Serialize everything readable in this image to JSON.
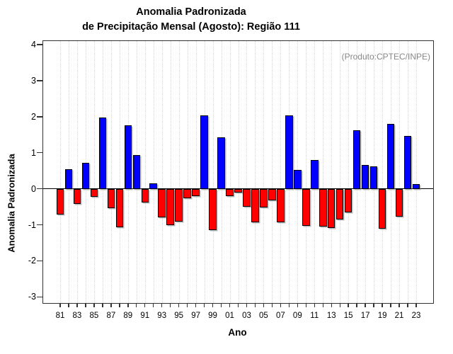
{
  "title": {
    "line1": "Anomalia Padronizada",
    "line2": "de Precipitação Mensal (Agosto): Região 111"
  },
  "annotation": "(Produto:CPTEC/INPE)",
  "chart_data": {
    "type": "bar",
    "title": "Anomalia Padronizada de Precipitação Mensal (Agosto): Região 111",
    "xlabel": "Ano",
    "ylabel": "Anomalia Padronizada",
    "ylim": [
      -3.17,
      4.1
    ],
    "yticks": [
      4,
      3,
      2,
      1,
      0,
      -1,
      -2,
      -3
    ],
    "grid": "vertical-dotted",
    "legend": "none",
    "x_labels_every": 2,
    "categories": [
      "81",
      "82",
      "83",
      "84",
      "85",
      "86",
      "87",
      "88",
      "89",
      "90",
      "91",
      "92",
      "93",
      "94",
      "95",
      "96",
      "97",
      "98",
      "99",
      "00",
      "01",
      "02",
      "03",
      "04",
      "05",
      "06",
      "07",
      "08",
      "09",
      "10",
      "11",
      "12",
      "13",
      "14",
      "15",
      "16",
      "17",
      "18",
      "19",
      "20",
      "21",
      "22",
      "23"
    ],
    "values": [
      -0.72,
      0.55,
      -0.41,
      0.73,
      -0.23,
      1.97,
      -0.54,
      -1.07,
      1.76,
      0.93,
      -0.38,
      0.15,
      -0.8,
      -1.0,
      -0.92,
      -0.27,
      -0.2,
      2.04,
      -1.14,
      1.43,
      -0.21,
      -0.1,
      -0.49,
      -0.93,
      -0.51,
      -0.33,
      -0.93,
      2.04,
      0.52,
      -1.02,
      0.79,
      -1.05,
      -1.08,
      -0.85,
      -0.65,
      1.62,
      0.67,
      0.63,
      -1.1,
      1.8,
      -0.78,
      1.47,
      0.13
    ],
    "positive_color": "#0000ff",
    "negative_color": "#ff0000"
  }
}
